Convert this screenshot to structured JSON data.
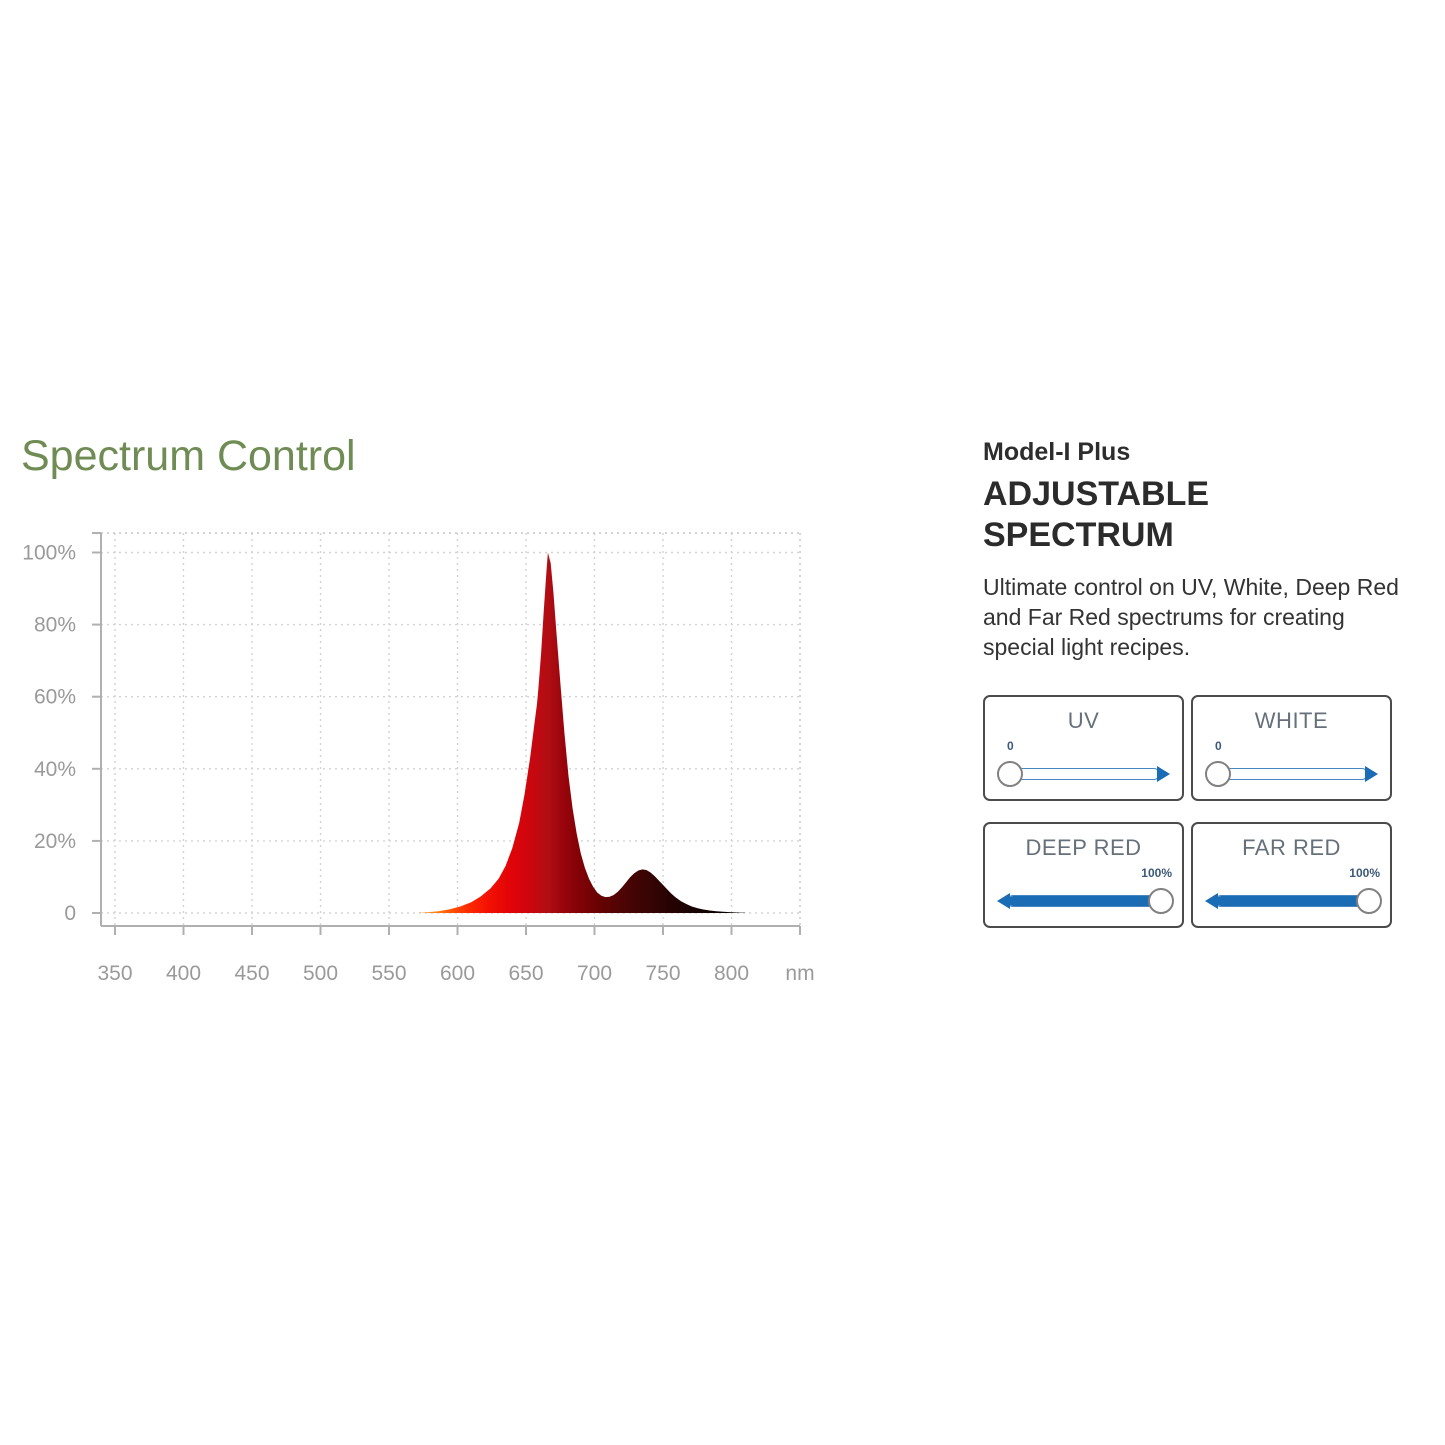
{
  "page": {
    "title": "Spectrum Control",
    "title_color": "#6e8c53"
  },
  "panel": {
    "model": "Model-I Plus",
    "heading_line1": "ADJUSTABLE",
    "heading_line2": "SPECTRUM",
    "description": "Ultimate control on UV, White, Deep Red and Far Red spectrums for creating special light recipes."
  },
  "controls": {
    "accent_blue": "#1a6cb4",
    "sliders": [
      {
        "label": "UV",
        "value": "0",
        "percent": 0
      },
      {
        "label": "WHITE",
        "value": "0",
        "percent": 0
      },
      {
        "label": "DEEP RED",
        "value": "100%",
        "percent": 100
      },
      {
        "label": "FAR RED",
        "value": "100%",
        "percent": 100
      }
    ]
  },
  "chart_data": {
    "type": "area",
    "title": "",
    "xlabel": "",
    "ylabel": "",
    "x_unit": "nm",
    "x_ticks": [
      350,
      400,
      450,
      500,
      550,
      600,
      650,
      700,
      750,
      800
    ],
    "y_ticks": [
      "100%",
      "80%",
      "60%",
      "40%",
      "20%",
      "0"
    ],
    "y_tick_values": [
      100,
      80,
      60,
      40,
      20,
      0
    ],
    "xlim": [
      350,
      850
    ],
    "ylim": [
      0,
      105
    ],
    "grid": true,
    "series": [
      {
        "name": "emission-spectrum",
        "peaks": [
          {
            "nm": 666,
            "percent": 100
          },
          {
            "nm": 735,
            "percent": 12
          }
        ],
        "points": [
          [
            570,
            0
          ],
          [
            578,
            0.2
          ],
          [
            586,
            0.5
          ],
          [
            594,
            1
          ],
          [
            602,
            1.8
          ],
          [
            610,
            3
          ],
          [
            617,
            4.6
          ],
          [
            624,
            6.8
          ],
          [
            630,
            9.5
          ],
          [
            635,
            13
          ],
          [
            640,
            18
          ],
          [
            645,
            25
          ],
          [
            649,
            33
          ],
          [
            653,
            43
          ],
          [
            656,
            52
          ],
          [
            658,
            58
          ],
          [
            659,
            62
          ],
          [
            661,
            72
          ],
          [
            663,
            84
          ],
          [
            665,
            95
          ],
          [
            666,
            100
          ],
          [
            668,
            97
          ],
          [
            670,
            89
          ],
          [
            672,
            79
          ],
          [
            675,
            64
          ],
          [
            678,
            50
          ],
          [
            681,
            38
          ],
          [
            684,
            29
          ],
          [
            687,
            22
          ],
          [
            690,
            16.5
          ],
          [
            693,
            12.5
          ],
          [
            696,
            9.5
          ],
          [
            699,
            7.3
          ],
          [
            702,
            5.7
          ],
          [
            705,
            4.8
          ],
          [
            708,
            4.4
          ],
          [
            711,
            4.5
          ],
          [
            714,
            5
          ],
          [
            717,
            5.9
          ],
          [
            720,
            7.1
          ],
          [
            723,
            8.5
          ],
          [
            726,
            9.9
          ],
          [
            729,
            11
          ],
          [
            732,
            11.8
          ],
          [
            735,
            12.1
          ],
          [
            738,
            11.9
          ],
          [
            741,
            11.2
          ],
          [
            744,
            10.2
          ],
          [
            747,
            9
          ],
          [
            750,
            7.8
          ],
          [
            753,
            6.6
          ],
          [
            756,
            5.4
          ],
          [
            759,
            4.4
          ],
          [
            763,
            3.3
          ],
          [
            767,
            2.5
          ],
          [
            771,
            1.8
          ],
          [
            775,
            1.35
          ],
          [
            779,
            1
          ],
          [
            784,
            0.7
          ],
          [
            789,
            0.5
          ],
          [
            794,
            0.33
          ],
          [
            800,
            0.2
          ],
          [
            806,
            0.1
          ],
          [
            810,
            0.06
          ]
        ]
      }
    ],
    "gradient_stops": [
      [
        570,
        "#ffaa3c"
      ],
      [
        585,
        "#ff7d14"
      ],
      [
        597,
        "#ff4d00"
      ],
      [
        608,
        "#ff2a00"
      ],
      [
        622,
        "#f41102"
      ],
      [
        638,
        "#e20407"
      ],
      [
        652,
        "#cd060e"
      ],
      [
        666,
        "#b10e14"
      ],
      [
        678,
        "#97040b"
      ],
      [
        692,
        "#7b0205"
      ],
      [
        706,
        "#630202"
      ],
      [
        720,
        "#4e0404"
      ],
      [
        734,
        "#3e0404"
      ],
      [
        748,
        "#2e0303"
      ],
      [
        762,
        "#200202"
      ],
      [
        776,
        "#140101"
      ],
      [
        790,
        "#0b0000"
      ],
      [
        810,
        "#060000"
      ]
    ]
  }
}
